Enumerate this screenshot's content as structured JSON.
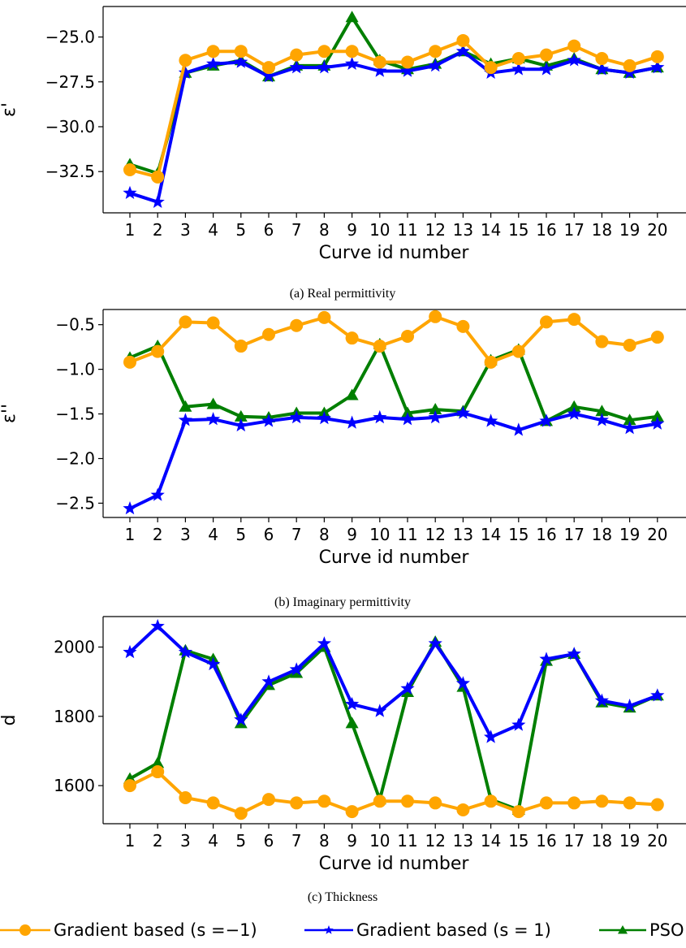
{
  "legend": [
    {
      "label": "Gradient based (s =−1)",
      "color": "#ffa500",
      "marker": "circle"
    },
    {
      "label": "Gradient based (s = 1)",
      "color": "#0000ff",
      "marker": "star"
    },
    {
      "label": "PSO",
      "color": "#007f00",
      "marker": "triangle"
    }
  ],
  "chart_data": [
    {
      "type": "line",
      "caption": "(a) Real permittivity",
      "xlabel": "Curve id number",
      "ylabel": "ε'",
      "x": [
        1,
        2,
        3,
        4,
        5,
        6,
        7,
        8,
        9,
        10,
        11,
        12,
        13,
        14,
        15,
        16,
        17,
        18,
        19,
        20
      ],
      "ylim": [
        -34.8,
        -23.3
      ],
      "yticks": [
        -25.0,
        -27.5,
        -30.0,
        -32.5
      ],
      "ytick_labels": [
        "−25.0",
        "−27.5",
        "−30.0",
        "−32.5"
      ],
      "series": [
        {
          "name": "PSO",
          "color": "#007f00",
          "marker": "triangle",
          "values": [
            -32.1,
            -32.6,
            -27.0,
            -26.6,
            -26.3,
            -27.2,
            -26.6,
            -26.6,
            -23.9,
            -26.3,
            -26.8,
            -26.5,
            -25.8,
            -26.5,
            -26.2,
            -26.6,
            -26.2,
            -26.8,
            -27.0,
            -26.7
          ]
        },
        {
          "name": "Gradient based (s = 1)",
          "color": "#0000ff",
          "marker": "star",
          "values": [
            -33.7,
            -34.2,
            -27.0,
            -26.5,
            -26.4,
            -27.2,
            -26.7,
            -26.7,
            -26.5,
            -26.9,
            -26.9,
            -26.6,
            -25.8,
            -27.0,
            -26.8,
            -26.8,
            -26.3,
            -26.8,
            -27.0,
            -26.7
          ]
        },
        {
          "name": "Gradient based (s =−1)",
          "color": "#ffa500",
          "marker": "circle",
          "values": [
            -32.4,
            -32.8,
            -26.3,
            -25.8,
            -25.8,
            -26.7,
            -26.0,
            -25.8,
            -25.8,
            -26.4,
            -26.4,
            -25.8,
            -25.2,
            -26.7,
            -26.2,
            -26.0,
            -25.5,
            -26.2,
            -26.6,
            -26.1
          ]
        }
      ]
    },
    {
      "type": "line",
      "caption": "(b) Imaginary permittivity",
      "xlabel": "Curve id number",
      "ylabel": "ε''",
      "x": [
        1,
        2,
        3,
        4,
        5,
        6,
        7,
        8,
        9,
        10,
        11,
        12,
        13,
        14,
        15,
        16,
        17,
        18,
        19,
        20
      ],
      "ylim": [
        -2.66,
        -0.33
      ],
      "yticks": [
        -0.5,
        -1.0,
        -1.5,
        -2.0,
        -2.5
      ],
      "ytick_labels": [
        "−0.5",
        "−1.0",
        "−1.5",
        "−2.0",
        "−2.5"
      ],
      "series": [
        {
          "name": "PSO",
          "color": "#007f00",
          "marker": "triangle",
          "values": [
            -0.87,
            -0.74,
            -1.42,
            -1.39,
            -1.53,
            -1.54,
            -1.49,
            -1.49,
            -1.29,
            -0.72,
            -1.49,
            -1.45,
            -1.47,
            -0.9,
            -0.78,
            -1.58,
            -1.42,
            -1.47,
            -1.57,
            -1.53
          ]
        },
        {
          "name": "Gradient based (s = 1)",
          "color": "#0000ff",
          "marker": "star",
          "values": [
            -2.56,
            -2.41,
            -1.57,
            -1.56,
            -1.63,
            -1.58,
            -1.54,
            -1.55,
            -1.6,
            -1.54,
            -1.56,
            -1.54,
            -1.49,
            -1.58,
            -1.68,
            -1.58,
            -1.5,
            -1.57,
            -1.66,
            -1.61
          ]
        },
        {
          "name": "Gradient based (s =−1)",
          "color": "#ffa500",
          "marker": "circle",
          "values": [
            -0.92,
            -0.8,
            -0.47,
            -0.48,
            -0.74,
            -0.61,
            -0.51,
            -0.42,
            -0.65,
            -0.74,
            -0.63,
            -0.41,
            -0.52,
            -0.92,
            -0.8,
            -0.47,
            -0.44,
            -0.69,
            -0.73,
            -0.64
          ]
        }
      ]
    },
    {
      "type": "line",
      "caption": "(c) Thickness",
      "xlabel": "Curve id number",
      "ylabel": "d",
      "x": [
        1,
        2,
        3,
        4,
        5,
        6,
        7,
        8,
        9,
        10,
        11,
        12,
        13,
        14,
        15,
        16,
        17,
        18,
        19,
        20
      ],
      "ylim": [
        1490,
        2088
      ],
      "yticks": [
        2000,
        1800,
        1600
      ],
      "ytick_labels": [
        "2000",
        "1800",
        "1600"
      ],
      "series": [
        {
          "name": "PSO",
          "color": "#007f00",
          "marker": "triangle",
          "values": [
            1620,
            1665,
            1990,
            1965,
            1780,
            1890,
            1925,
            2000,
            1780,
            1560,
            1870,
            2015,
            1885,
            1560,
            1530,
            1960,
            1980,
            1840,
            1825,
            1860
          ]
        },
        {
          "name": "Gradient based (s = 1)",
          "color": "#0000ff",
          "marker": "star",
          "values": [
            1985,
            2060,
            1985,
            1950,
            1790,
            1900,
            1935,
            2010,
            1835,
            1815,
            1880,
            2010,
            1895,
            1740,
            1775,
            1965,
            1980,
            1845,
            1830,
            1860
          ]
        },
        {
          "name": "Gradient based (s =−1)",
          "color": "#ffa500",
          "marker": "circle",
          "values": [
            1600,
            1640,
            1565,
            1550,
            1520,
            1560,
            1550,
            1555,
            1525,
            1555,
            1555,
            1550,
            1530,
            1555,
            1525,
            1550,
            1550,
            1555,
            1550,
            1545
          ]
        }
      ]
    }
  ]
}
